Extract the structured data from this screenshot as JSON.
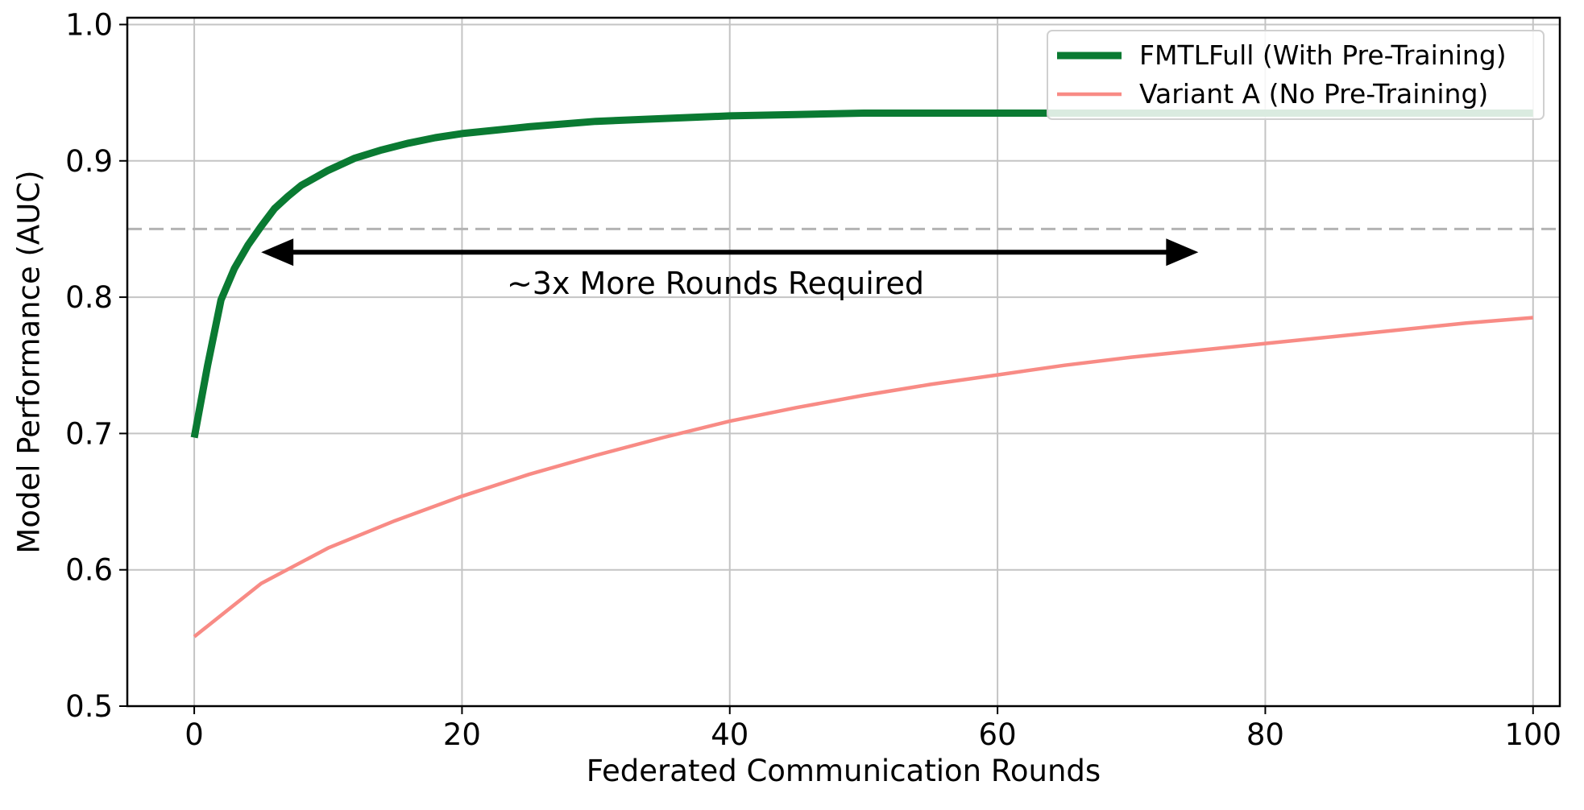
{
  "chart_data": {
    "type": "line",
    "xlabel": "Federated Communication Rounds",
    "ylabel": "Model Performance (AUC)",
    "xlim": [
      -5,
      102
    ],
    "ylim": [
      0.5,
      1.005
    ],
    "xticks": [
      0,
      20,
      40,
      60,
      80,
      100
    ],
    "xtick_labels": [
      "0",
      "20",
      "40",
      "60",
      "80",
      "100"
    ],
    "yticks": [
      0.5,
      0.6,
      0.7,
      0.8,
      0.9,
      1.0
    ],
    "ytick_labels": [
      "0.5",
      "0.6",
      "0.7",
      "0.8",
      "0.9",
      "1.0"
    ],
    "grid": true,
    "legend_position": "top-right",
    "threshold": {
      "y": 0.85,
      "color": "#b3b3b3",
      "style": "dashed"
    },
    "annotation": {
      "text": "~3x More Rounds Required",
      "arrow_from": [
        5,
        0.833
      ],
      "arrow_to": [
        75,
        0.833
      ]
    },
    "series": [
      {
        "name": "FMTLFull (With Pre-Training)",
        "color": "#0a7a32",
        "x": [
          0,
          1,
          2,
          3,
          4,
          5,
          6,
          7,
          8,
          10,
          12,
          14,
          16,
          18,
          20,
          25,
          30,
          35,
          40,
          45,
          50,
          60,
          70,
          80,
          90,
          100
        ],
        "y": [
          0.697,
          0.75,
          0.798,
          0.821,
          0.838,
          0.852,
          0.865,
          0.874,
          0.882,
          0.893,
          0.902,
          0.908,
          0.913,
          0.917,
          0.92,
          0.925,
          0.929,
          0.931,
          0.933,
          0.934,
          0.935,
          0.935,
          0.935,
          0.935,
          0.935,
          0.935
        ]
      },
      {
        "name": "Variant A (No Pre-Training)",
        "color": "#f88b85",
        "x": [
          0,
          5,
          10,
          15,
          20,
          25,
          30,
          35,
          40,
          45,
          50,
          55,
          60,
          65,
          70,
          75,
          80,
          85,
          90,
          95,
          100
        ],
        "y": [
          0.551,
          0.59,
          0.616,
          0.636,
          0.654,
          0.67,
          0.684,
          0.697,
          0.709,
          0.719,
          0.728,
          0.736,
          0.743,
          0.75,
          0.756,
          0.761,
          0.766,
          0.771,
          0.776,
          0.781,
          0.785
        ]
      }
    ]
  }
}
